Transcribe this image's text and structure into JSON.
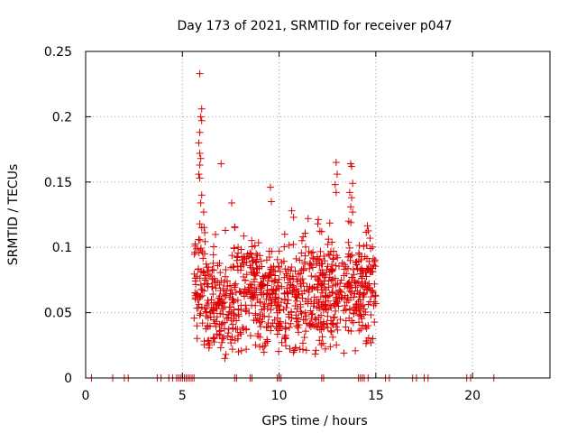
{
  "chart_data": {
    "type": "scatter",
    "title": "Day 173 of 2021, SRMTID for receiver p047",
    "xlabel": "GPS time / hours",
    "ylabel": "SRMTID / TECUs",
    "xlim": [
      0,
      24
    ],
    "ylim": [
      0,
      0.25
    ],
    "x_ticks": [
      0,
      5,
      10,
      15,
      20
    ],
    "y_ticks": [
      0,
      0.05,
      0.1,
      0.15,
      0.2,
      0.25
    ],
    "x_tick_labels": [
      "0",
      "5",
      "10",
      "15",
      "20"
    ],
    "y_tick_labels": [
      "0",
      "0.05",
      "0.1",
      "0.15",
      "0.2",
      "0.25"
    ],
    "grid": true,
    "marker": "+",
    "marker_color": "#dd0000",
    "series": [
      {
        "name": "p047",
        "points": [
          [
            0.3,
            0.0
          ],
          [
            1.4,
            0.0
          ],
          [
            2.0,
            0.0
          ],
          [
            2.2,
            0.0
          ],
          [
            3.7,
            0.0
          ],
          [
            3.9,
            0.0
          ],
          [
            4.3,
            0.0
          ],
          [
            4.5,
            0.0
          ],
          [
            4.7,
            0.0
          ],
          [
            4.8,
            0.0
          ],
          [
            4.9,
            0.0
          ],
          [
            5.0,
            0.0
          ],
          [
            5.1,
            0.0
          ],
          [
            5.2,
            0.0
          ],
          [
            5.3,
            0.0
          ],
          [
            5.4,
            0.0
          ],
          [
            5.5,
            0.0
          ],
          [
            5.6,
            0.0
          ],
          [
            7.7,
            0.0
          ],
          [
            7.8,
            0.0
          ],
          [
            8.5,
            0.0
          ],
          [
            8.6,
            0.0
          ],
          [
            9.9,
            0.0
          ],
          [
            10.0,
            0.0
          ],
          [
            10.1,
            0.0
          ],
          [
            12.2,
            0.0
          ],
          [
            12.3,
            0.0
          ],
          [
            14.1,
            0.0
          ],
          [
            14.2,
            0.0
          ],
          [
            14.3,
            0.0
          ],
          [
            14.4,
            0.0
          ],
          [
            14.6,
            0.0
          ],
          [
            15.5,
            0.0
          ],
          [
            15.7,
            0.0
          ],
          [
            16.9,
            0.0
          ],
          [
            17.1,
            0.0
          ],
          [
            17.5,
            0.0
          ],
          [
            17.7,
            0.0
          ],
          [
            19.7,
            0.0
          ],
          [
            19.9,
            0.0
          ],
          [
            21.1,
            0.0
          ],
          [
            5.9,
            0.233
          ],
          [
            6.0,
            0.206
          ],
          [
            5.95,
            0.2
          ],
          [
            6.0,
            0.197
          ],
          [
            5.9,
            0.188
          ],
          [
            5.85,
            0.18
          ],
          [
            5.9,
            0.172
          ],
          [
            5.95,
            0.168
          ],
          [
            5.9,
            0.163
          ],
          [
            5.85,
            0.156
          ],
          [
            5.9,
            0.153
          ],
          [
            6.0,
            0.14
          ],
          [
            5.95,
            0.134
          ],
          [
            6.1,
            0.127
          ],
          [
            5.9,
            0.118
          ],
          [
            6.0,
            0.115
          ],
          [
            5.85,
            0.106
          ],
          [
            5.95,
            0.098
          ],
          [
            6.15,
            0.095
          ],
          [
            7.0,
            0.164
          ],
          [
            7.55,
            0.134
          ],
          [
            9.55,
            0.146
          ],
          [
            9.6,
            0.135
          ],
          [
            10.65,
            0.128
          ],
          [
            10.75,
            0.123
          ],
          [
            11.5,
            0.122
          ],
          [
            12.0,
            0.118
          ],
          [
            12.2,
            0.112
          ],
          [
            12.95,
            0.165
          ],
          [
            13.0,
            0.156
          ],
          [
            12.9,
            0.148
          ],
          [
            12.95,
            0.142
          ],
          [
            13.7,
            0.164
          ],
          [
            13.75,
            0.162
          ],
          [
            13.8,
            0.149
          ],
          [
            13.65,
            0.142
          ],
          [
            13.75,
            0.138
          ],
          [
            13.7,
            0.131
          ],
          [
            13.8,
            0.127
          ],
          [
            13.6,
            0.12
          ],
          [
            14.7,
            0.107
          ],
          [
            14.75,
            0.027
          ],
          [
            7.2,
            0.015
          ],
          [
            7.25,
            0.018
          ],
          [
            6.4,
            0.025
          ],
          [
            6.6,
            0.03
          ],
          [
            7.9,
            0.02
          ],
          [
            8.3,
            0.022
          ],
          [
            9.4,
            0.028
          ],
          [
            10.3,
            0.03
          ],
          [
            11.0,
            0.035
          ],
          [
            11.8,
            0.04
          ],
          [
            12.3,
            0.038
          ],
          [
            14.6,
            0.04
          ]
        ]
      }
    ]
  }
}
